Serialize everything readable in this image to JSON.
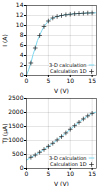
{
  "chart_data": [
    {
      "type": "line",
      "xlabel": "V (V)",
      "ylabel": "I (A)",
      "xlim": [
        0,
        16
      ],
      "ylim": [
        0,
        14
      ],
      "xticks": [
        0,
        5,
        10,
        15
      ],
      "yticks": [
        0,
        2,
        4,
        6,
        8,
        10,
        12,
        14
      ],
      "grid": true,
      "legend": "lower right",
      "series": [
        {
          "name": "3-D calculation",
          "type": "line",
          "color": "#7dd8f0",
          "x": [
            0,
            0.5,
            1,
            1.5,
            2,
            2.5,
            3,
            3.5,
            4,
            5,
            6,
            7,
            8,
            9,
            10,
            11,
            12,
            13,
            14,
            15,
            16
          ],
          "values": [
            0,
            1.2,
            2.5,
            4.2,
            5.5,
            7.0,
            8.0,
            9.0,
            9.8,
            10.9,
            11.5,
            11.8,
            12.0,
            12.15,
            12.25,
            12.35,
            12.4,
            12.45,
            12.5,
            12.52,
            12.54
          ]
        },
        {
          "name": "Calculation 1D",
          "type": "scatter",
          "color": "#222222",
          "marker": "plus",
          "x": [
            1,
            2,
            3,
            4,
            5,
            6,
            7,
            8,
            9,
            10,
            11,
            12,
            13,
            14,
            15
          ],
          "values": [
            2.5,
            5.5,
            8.0,
            9.8,
            10.9,
            11.5,
            11.8,
            12.0,
            12.15,
            12.25,
            12.35,
            12.4,
            12.45,
            12.5,
            12.52
          ]
        }
      ]
    },
    {
      "type": "line",
      "xlabel": "V (V)",
      "ylabel": "TJ (µA)",
      "xlim": [
        0,
        16
      ],
      "ylim": [
        0,
        2500
      ],
      "xticks": [
        0,
        5,
        10,
        15
      ],
      "yticks": [
        0,
        500,
        1000,
        1500,
        2000,
        2500
      ],
      "grid": true,
      "legend": "lower right",
      "series": [
        {
          "name": "3-D calculation",
          "type": "line",
          "color": "#7dd8f0",
          "x": [
            0,
            1,
            2,
            3,
            4,
            5,
            6,
            7,
            8,
            9,
            10,
            11,
            12,
            13,
            14,
            15,
            16
          ],
          "values": [
            300,
            400,
            480,
            580,
            680,
            790,
            900,
            1020,
            1140,
            1270,
            1400,
            1530,
            1650,
            1770,
            1880,
            1970,
            2020
          ]
        },
        {
          "name": "Calculation 1D",
          "type": "scatter",
          "color": "#222222",
          "marker": "plus",
          "x": [
            1,
            2,
            3,
            4,
            5,
            6,
            7,
            8,
            9,
            10,
            11,
            12,
            13,
            14,
            15
          ],
          "values": [
            400,
            480,
            580,
            680,
            790,
            900,
            1020,
            1140,
            1270,
            1400,
            1530,
            1650,
            1770,
            1880,
            1970
          ]
        }
      ]
    }
  ]
}
